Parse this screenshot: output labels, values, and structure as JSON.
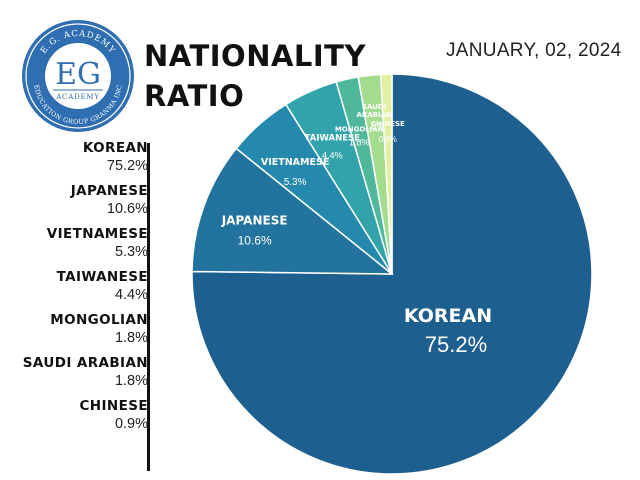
{
  "header": {
    "title_line1": "NATIONALITY",
    "title_line2": "RATIO",
    "date": "JANUARY, 02, 2024"
  },
  "logo": {
    "initials": "EG",
    "top_arc": "E.G. ACADEMY",
    "middle": "ACADEMY",
    "bottom_arc": "EDUCATION GROUP GRANMA INC"
  },
  "colors": {
    "korean": "#1d5f8e",
    "japanese": "#23739f",
    "vietnamese": "#2589ad",
    "taiwanese": "#33a3ab",
    "mongolian": "#4fb89a",
    "saudi_arabian": "#a3dc8e",
    "chinese": "#e0efa0",
    "logo_blue": "#2f6eb0"
  },
  "legend": [
    {
      "name": "KOREAN",
      "value": "75.2%"
    },
    {
      "name": "JAPANESE",
      "value": "10.6%"
    },
    {
      "name": "VIETNAMESE",
      "value": "5.3%"
    },
    {
      "name": "TAIWANESE",
      "value": "4.4%"
    },
    {
      "name": "MONGOLIAN",
      "value": "1.8%"
    },
    {
      "name": "SAUDI ARABIAN",
      "value": "1.8%"
    },
    {
      "name": "CHINESE",
      "value": "0.9%"
    }
  ],
  "chart_data": {
    "type": "pie",
    "title": "NATIONALITY RATIO",
    "slices": [
      {
        "label": "KOREAN",
        "value": 75.2,
        "display": "75.2%",
        "color": "#1d5f8e"
      },
      {
        "label": "JAPANESE",
        "value": 10.6,
        "display": "10.6%",
        "color": "#23739f"
      },
      {
        "label": "VIETNAMESE",
        "value": 5.3,
        "display": "5.3%",
        "color": "#2589ad"
      },
      {
        "label": "TAIWANESE",
        "value": 4.4,
        "display": "4.4%",
        "color": "#33a3ab"
      },
      {
        "label": "MONGOLIAN",
        "value": 1.8,
        "display": "1.8%",
        "color": "#4fb89a"
      },
      {
        "label": "SAUDI ARABIAN",
        "value": 1.8,
        "display": "1.8%",
        "color": "#a3dc8e"
      },
      {
        "label": "CHINESE",
        "value": 0.9,
        "display": "0.9%",
        "color": "#e0efa0"
      }
    ],
    "legend_position": "left"
  }
}
